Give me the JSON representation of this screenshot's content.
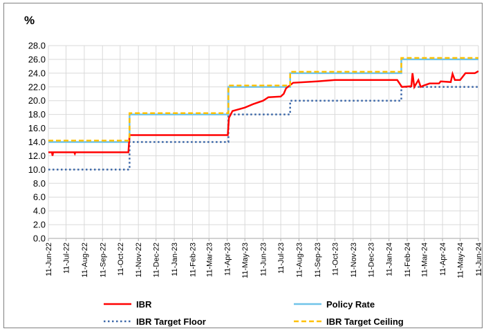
{
  "chart_data": {
    "type": "line",
    "title": "",
    "ylabel": "%",
    "xlabel": "",
    "ylim": [
      0,
      28
    ],
    "y_ticks": [
      "0.0",
      "2.0",
      "4.0",
      "6.0",
      "8.0",
      "10.0",
      "12.0",
      "14.0",
      "16.0",
      "18.0",
      "20.0",
      "22.0",
      "24.0",
      "26.0",
      "28.0"
    ],
    "x_ticks": [
      "11-Jun-22",
      "11-Jul-22",
      "11-Aug-22",
      "11-Sep-22",
      "11-Oct-22",
      "11-Nov-22",
      "11-Dec-22",
      "11-Jan-23",
      "11-Feb-23",
      "11-Mar-23",
      "11-Apr-23",
      "11-May-23",
      "11-Jun-23",
      "11-Jul-23",
      "11-Aug-23",
      "11-Sep-23",
      "11-Oct-23",
      "11-Nov-23",
      "11-Dec-23",
      "11-Jan-24",
      "11-Feb-24",
      "11-Mar-24",
      "11-Apr-24",
      "11-May-24",
      "11-Jun-24"
    ],
    "grid": true,
    "legend_position": "bottom",
    "series": [
      {
        "name": "IBR",
        "color": "#ff0000",
        "style": "solid",
        "points": [
          [
            "11-Jun-22",
            12.5
          ],
          [
            "17-Jun-22",
            12.5
          ],
          [
            "18-Jun-22",
            12.0
          ],
          [
            "19-Jun-22",
            12.5
          ],
          [
            "25-Jul-22",
            12.5
          ],
          [
            "26-Jul-22",
            12.3
          ],
          [
            "27-Jul-22",
            12.5
          ],
          [
            "25-Oct-22",
            12.5
          ],
          [
            "27-Oct-22",
            15.0
          ],
          [
            "12-Apr-23",
            15.0
          ],
          [
            "14-Apr-23",
            17.5
          ],
          [
            "20-Apr-23",
            18.5
          ],
          [
            "11-May-23",
            19.0
          ],
          [
            "25-May-23",
            19.5
          ],
          [
            "11-Jun-23",
            20.0
          ],
          [
            "20-Jun-23",
            20.5
          ],
          [
            "11-Jul-23",
            20.6
          ],
          [
            "16-Jul-23",
            21.0
          ],
          [
            "20-Jul-23",
            21.8
          ],
          [
            "1-Aug-23",
            22.6
          ],
          [
            "11-Sep-23",
            22.8
          ],
          [
            "11-Oct-23",
            23.0
          ],
          [
            "11-Jan-24",
            23.0
          ],
          [
            "25-Jan-24",
            23.0
          ],
          [
            "2-Feb-24",
            22.0
          ],
          [
            "18-Feb-24",
            22.1
          ],
          [
            "20-Feb-24",
            24.0
          ],
          [
            "23-Feb-24",
            22.0
          ],
          [
            "1-Mar-24",
            23.0
          ],
          [
            "5-Mar-24",
            22.0
          ],
          [
            "10-Mar-24",
            22.2
          ],
          [
            "20-Mar-24",
            22.5
          ],
          [
            "5-Apr-24",
            22.5
          ],
          [
            "8-Apr-24",
            22.8
          ],
          [
            "25-Apr-24",
            22.7
          ],
          [
            "28-Apr-24",
            23.9
          ],
          [
            "2-May-24",
            23.0
          ],
          [
            "11-May-24",
            23.0
          ],
          [
            "20-May-24",
            24.0
          ],
          [
            "5-Jun-24",
            24.0
          ],
          [
            "11-Jun-24",
            24.3
          ]
        ]
      },
      {
        "name": "Policy Rate",
        "color": "#6fc3e9",
        "style": "solid",
        "points": [
          [
            "11-Jun-22",
            14.0
          ],
          [
            "27-Oct-22",
            14.0
          ],
          [
            "27-Oct-22",
            18.0
          ],
          [
            "13-Apr-23",
            18.0
          ],
          [
            "13-Apr-23",
            22.0
          ],
          [
            "27-Jul-23",
            22.0
          ],
          [
            "27-Jul-23",
            24.0
          ],
          [
            "1-Feb-24",
            24.0
          ],
          [
            "1-Feb-24",
            26.0
          ],
          [
            "11-Jun-24",
            26.0
          ]
        ]
      },
      {
        "name": "IBR Target Floor",
        "color": "#3a66a8",
        "style": "dotted",
        "points": [
          [
            "11-Jun-22",
            10.0
          ],
          [
            "27-Oct-22",
            10.0
          ],
          [
            "27-Oct-22",
            14.0
          ],
          [
            "13-Apr-23",
            14.0
          ],
          [
            "13-Apr-23",
            18.0
          ],
          [
            "27-Jul-23",
            18.0
          ],
          [
            "27-Jul-23",
            20.0
          ],
          [
            "1-Feb-24",
            20.0
          ],
          [
            "1-Feb-24",
            22.0
          ],
          [
            "11-Jun-24",
            22.0
          ]
        ]
      },
      {
        "name": "IBR Target Ceiling",
        "color": "#ffc000",
        "style": "dashed",
        "points": [
          [
            "11-Jun-22",
            14.2
          ],
          [
            "27-Oct-22",
            14.2
          ],
          [
            "27-Oct-22",
            18.2
          ],
          [
            "13-Apr-23",
            18.2
          ],
          [
            "13-Apr-23",
            22.2
          ],
          [
            "27-Jul-23",
            22.2
          ],
          [
            "27-Jul-23",
            24.2
          ],
          [
            "1-Feb-24",
            24.2
          ],
          [
            "1-Feb-24",
            26.2
          ],
          [
            "11-Jun-24",
            26.2
          ]
        ]
      }
    ]
  }
}
